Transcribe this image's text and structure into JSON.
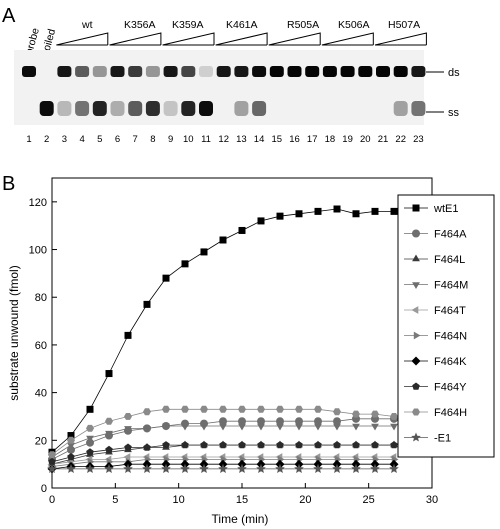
{
  "panel_a": {
    "letter": "A",
    "top_labels": [
      "probe",
      "boiled",
      "wt",
      "K356A",
      "K359A",
      "K461A",
      "R505A",
      "K506A",
      "H507A"
    ],
    "band_labels": {
      "ds": "ds",
      "ss": "ss"
    },
    "lane_numbers": [
      "1",
      "2",
      "3",
      "4",
      "5",
      "6",
      "7",
      "8",
      "9",
      "10",
      "11",
      "12",
      "13",
      "14",
      "15",
      "16",
      "17",
      "18",
      "19",
      "20",
      "21",
      "22",
      "23"
    ],
    "gel": {
      "ds_intensity": [
        0.95,
        0.0,
        0.9,
        0.6,
        0.35,
        0.9,
        0.75,
        0.35,
        0.9,
        0.7,
        0.1,
        0.9,
        0.9,
        0.95,
        0.98,
        0.98,
        0.98,
        0.98,
        0.98,
        0.98,
        0.98,
        0.98,
        0.9
      ],
      "ss_intensity": [
        0.0,
        0.95,
        0.2,
        0.5,
        0.85,
        0.25,
        0.6,
        0.8,
        0.15,
        0.85,
        0.95,
        0.0,
        0.3,
        0.55,
        0.0,
        0.0,
        0.0,
        0.0,
        0.0,
        0.0,
        0.0,
        0.3,
        0.5
      ]
    }
  },
  "panel_b": {
    "letter": "B",
    "chart_data": {
      "type": "line",
      "xlabel": "Time (min)",
      "ylabel": "substrate unwound (fmol)",
      "xlim": [
        0,
        30
      ],
      "ylim": [
        0,
        130
      ],
      "xticks": [
        "0",
        "5",
        "10",
        "15",
        "20",
        "25",
        "30"
      ],
      "yticks": [
        "0",
        "20",
        "40",
        "60",
        "80",
        "100",
        "120"
      ],
      "x": [
        0,
        1.5,
        3,
        4.5,
        6,
        7.5,
        9,
        10.5,
        12,
        13.5,
        15,
        16.5,
        18,
        19.5,
        21,
        22.5,
        24,
        25.5,
        27
      ],
      "legend_position": "right",
      "series": [
        {
          "name": "wtE1",
          "marker": "square",
          "color": "#000000",
          "values": [
            15,
            22,
            33,
            48,
            64,
            77,
            88,
            94,
            99,
            104,
            108,
            112,
            114,
            115,
            116,
            117,
            115,
            116,
            116
          ]
        },
        {
          "name": "F464A",
          "marker": "circle",
          "color": "#6e6e6e",
          "values": [
            12,
            16,
            19,
            22,
            24,
            25,
            26,
            27,
            27,
            28,
            28,
            28,
            28,
            28,
            28,
            28,
            29,
            29,
            29
          ]
        },
        {
          "name": "F464L",
          "marker": "triangle-up",
          "color": "#3a3a3a",
          "values": [
            10,
            12,
            14,
            15,
            16,
            17,
            17,
            18,
            18,
            18,
            18,
            18,
            18,
            18,
            18,
            18,
            18,
            18,
            18
          ]
        },
        {
          "name": "F464M",
          "marker": "triangle-down",
          "color": "#6e6e6e",
          "values": [
            13,
            18,
            21,
            23,
            25,
            25,
            26,
            26,
            26,
            26,
            26,
            26,
            26,
            26,
            26,
            26,
            26,
            26,
            26
          ]
        },
        {
          "name": "F464T",
          "marker": "triangle-left",
          "color": "#9a9a9a",
          "values": [
            10,
            11,
            12,
            12,
            13,
            13,
            13,
            13,
            13,
            13,
            13,
            13,
            13,
            13,
            13,
            13,
            13,
            13,
            13
          ]
        },
        {
          "name": "F464N",
          "marker": "triangle-right",
          "color": "#7a7a7a",
          "values": [
            9,
            10,
            11,
            11,
            11,
            12,
            12,
            12,
            12,
            12,
            12,
            12,
            12,
            12,
            12,
            12,
            12,
            12,
            12
          ]
        },
        {
          "name": "F464K",
          "marker": "diamond",
          "color": "#000000",
          "values": [
            8,
            9,
            9,
            9,
            10,
            10,
            10,
            10,
            10,
            10,
            10,
            10,
            10,
            10,
            10,
            10,
            10,
            10,
            10
          ]
        },
        {
          "name": "F464Y",
          "marker": "pentagon",
          "color": "#2a2a2a",
          "values": [
            11,
            13,
            15,
            16,
            17,
            17,
            18,
            18,
            18,
            18,
            18,
            18,
            18,
            18,
            18,
            18,
            18,
            18,
            18
          ]
        },
        {
          "name": "F464H",
          "marker": "hexagon",
          "color": "#8a8a8a",
          "values": [
            14,
            20,
            25,
            28,
            30,
            32,
            33,
            33,
            33,
            33,
            33,
            33,
            33,
            33,
            33,
            32,
            31,
            31,
            30
          ]
        },
        {
          "name": "-E1",
          "marker": "star",
          "color": "#555555",
          "values": [
            8,
            8,
            8,
            8,
            8,
            8,
            8,
            8,
            8,
            8,
            8,
            8,
            8,
            8,
            8,
            8,
            8,
            8,
            8
          ]
        }
      ]
    }
  }
}
